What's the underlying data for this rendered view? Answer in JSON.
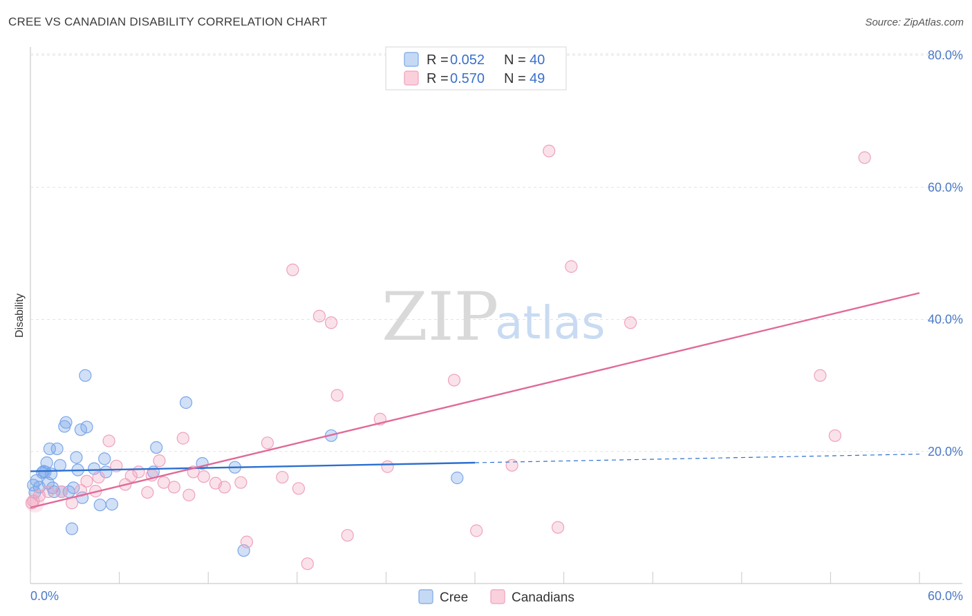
{
  "header": {
    "title": "CREE VS CANADIAN DISABILITY CORRELATION CHART",
    "source": "Source: ZipAtlas.com"
  },
  "watermark": {
    "zip": "ZIP",
    "atlas": "atlas"
  },
  "legend": {
    "r_label": "R =",
    "n_label": "N =",
    "rows": [
      {
        "name": "Cree",
        "r": "0.052",
        "n": "40",
        "color": "#7aa6e8"
      },
      {
        "name": "Canadians",
        "r": "0.570",
        "n": "49",
        "color": "#f0a0bb"
      }
    ]
  },
  "chart_data": {
    "type": "scatter",
    "title": "CREE VS CANADIAN DISABILITY CORRELATION CHART",
    "ylabel": "Disability",
    "xlabel": "",
    "xlim": [
      0,
      60
    ],
    "ylim": [
      0,
      80
    ],
    "x_tick_labels": [
      "0.0%",
      "60.0%"
    ],
    "y_ticks": [
      {
        "value": 20,
        "label": "20.0%"
      },
      {
        "value": 40,
        "label": "40.0%"
      },
      {
        "value": 60,
        "label": "60.0%"
      },
      {
        "value": 80,
        "label": "80.0%"
      }
    ],
    "series": [
      {
        "name": "Cree",
        "color": "#7aa6e8",
        "trend_color": "#2b6fcf",
        "trend": {
          "x0": 0,
          "y0": 17.0,
          "x1": 60,
          "y1": 19.6,
          "solid_until": 30
        },
        "points": [
          [
            0.3,
            13.8
          ],
          [
            0.4,
            15.6
          ],
          [
            0.6,
            14.6
          ],
          [
            0.8,
            16.8
          ],
          [
            0.9,
            17.0
          ],
          [
            1.1,
            18.3
          ],
          [
            1.2,
            15.2
          ],
          [
            1.3,
            20.4
          ],
          [
            1.4,
            16.6
          ],
          [
            1.5,
            14.5
          ],
          [
            1.6,
            13.9
          ],
          [
            1.8,
            20.4
          ],
          [
            2.0,
            17.9
          ],
          [
            2.1,
            13.9
          ],
          [
            2.3,
            23.8
          ],
          [
            2.4,
            24.4
          ],
          [
            2.6,
            13.9
          ],
          [
            2.8,
            8.3
          ],
          [
            2.9,
            14.5
          ],
          [
            3.1,
            19.1
          ],
          [
            3.2,
            17.2
          ],
          [
            3.4,
            23.3
          ],
          [
            3.5,
            13.0
          ],
          [
            3.7,
            31.5
          ],
          [
            3.8,
            23.7
          ],
          [
            4.3,
            17.4
          ],
          [
            4.7,
            11.9
          ],
          [
            5.0,
            18.9
          ],
          [
            5.1,
            16.9
          ],
          [
            5.5,
            12.0
          ],
          [
            8.3,
            16.9
          ],
          [
            8.5,
            20.6
          ],
          [
            10.5,
            27.4
          ],
          [
            11.6,
            18.2
          ],
          [
            13.8,
            17.6
          ],
          [
            14.4,
            5.0
          ],
          [
            20.3,
            22.4
          ],
          [
            28.8,
            16.0
          ],
          [
            0.2,
            14.9
          ],
          [
            1.0,
            16.9
          ]
        ]
      },
      {
        "name": "Canadians",
        "color": "#f0a0bb",
        "trend_color": "#e06a98",
        "trend": {
          "x0": 0,
          "y0": 11.5,
          "x1": 60,
          "y1": 44.0,
          "solid_until": 60
        },
        "points": [
          [
            0.2,
            12.5
          ],
          [
            0.6,
            13.3
          ],
          [
            1.2,
            13.9
          ],
          [
            2.1,
            13.9
          ],
          [
            2.8,
            12.2
          ],
          [
            3.4,
            14.1
          ],
          [
            3.8,
            15.5
          ],
          [
            4.4,
            14.0
          ],
          [
            4.6,
            16.1
          ],
          [
            5.3,
            21.6
          ],
          [
            5.8,
            17.8
          ],
          [
            6.4,
            15.0
          ],
          [
            6.8,
            16.3
          ],
          [
            7.3,
            16.9
          ],
          [
            7.9,
            13.8
          ],
          [
            8.2,
            16.4
          ],
          [
            8.7,
            18.6
          ],
          [
            9.0,
            15.3
          ],
          [
            9.7,
            14.6
          ],
          [
            10.3,
            22.0
          ],
          [
            10.7,
            13.4
          ],
          [
            11.0,
            16.9
          ],
          [
            11.7,
            16.2
          ],
          [
            12.5,
            15.2
          ],
          [
            13.1,
            14.6
          ],
          [
            14.2,
            15.3
          ],
          [
            14.6,
            6.3
          ],
          [
            16.0,
            21.3
          ],
          [
            17.0,
            16.1
          ],
          [
            17.7,
            47.5
          ],
          [
            18.1,
            14.4
          ],
          [
            18.7,
            3.0
          ],
          [
            19.5,
            40.5
          ],
          [
            20.3,
            39.5
          ],
          [
            20.7,
            28.5
          ],
          [
            21.4,
            7.3
          ],
          [
            23.6,
            24.9
          ],
          [
            24.1,
            17.7
          ],
          [
            28.6,
            30.8
          ],
          [
            30.1,
            8.0
          ],
          [
            32.5,
            17.9
          ],
          [
            35.0,
            65.5
          ],
          [
            35.6,
            8.5
          ],
          [
            36.5,
            48.0
          ],
          [
            40.5,
            39.5
          ],
          [
            53.3,
            31.5
          ],
          [
            54.3,
            22.4
          ],
          [
            56.3,
            64.5
          ],
          [
            0.1,
            12.2
          ]
        ]
      }
    ]
  }
}
